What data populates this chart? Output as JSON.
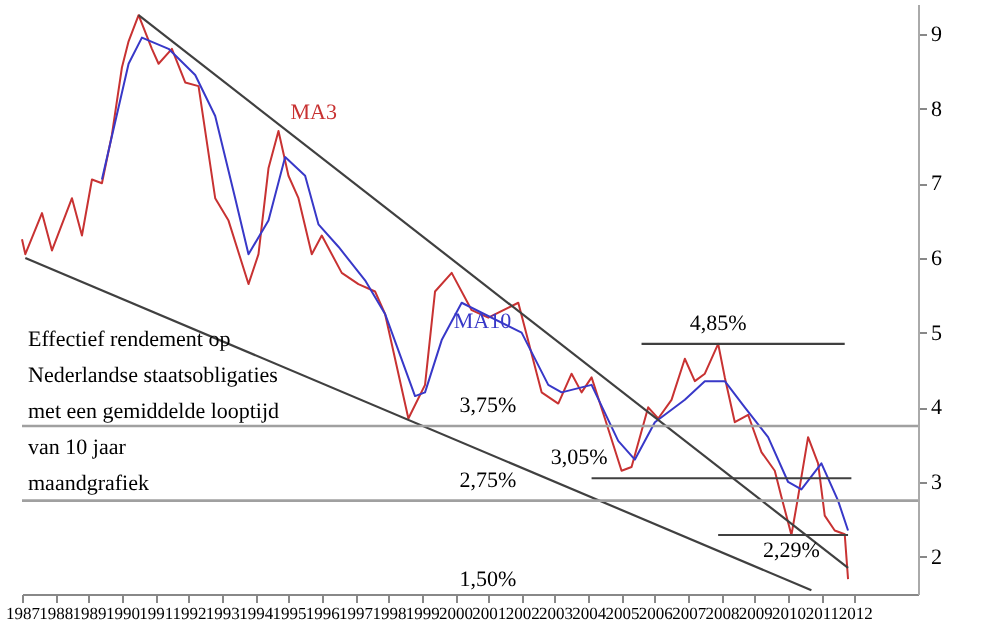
{
  "chart_data": {
    "type": "line",
    "title": "Effectief rendement op Nederlandse staatsobligaties met een gemiddelde looptijd van 10 jaar",
    "subtitle": "maandgrafiek",
    "xlim": [
      1987,
      2013.9
    ],
    "xticks": [
      1987,
      1988,
      1989,
      1990,
      1991,
      1992,
      1993,
      1994,
      1995,
      1996,
      1997,
      1998,
      1999,
      2000,
      2001,
      2002,
      2003,
      2004,
      2005,
      2006,
      2007,
      2008,
      2009,
      2010,
      2011,
      2012
    ],
    "ylim": [
      1.5,
      9.4
    ],
    "yticks": [
      2,
      3,
      4,
      5,
      6,
      7,
      8,
      9
    ],
    "grid": false,
    "series": [
      {
        "name": "MA3",
        "color": "#c83232",
        "x": [
          1987.0,
          1987.1,
          1987.6,
          1987.9,
          1988.5,
          1988.8,
          1989.1,
          1989.4,
          1989.7,
          1990.0,
          1990.2,
          1990.5,
          1990.9,
          1991.1,
          1991.5,
          1991.9,
          1992.3,
          1992.8,
          1993.2,
          1993.8,
          1994.1,
          1994.4,
          1994.7,
          1995.0,
          1995.3,
          1995.7,
          1996.0,
          1996.6,
          1997.1,
          1997.6,
          1997.9,
          1998.6,
          1999.1,
          1999.4,
          1999.9,
          2000.5,
          2001.0,
          2001.9,
          2002.6,
          2003.1,
          2003.5,
          2003.8,
          2004.1,
          2004.5,
          2005.0,
          2005.3,
          2005.8,
          2006.1,
          2006.5,
          2006.9,
          2007.2,
          2007.5,
          2007.9,
          2008.1,
          2008.4,
          2008.8,
          2009.2,
          2009.6,
          2009.8,
          2010.1,
          2010.3,
          2010.6,
          2010.9,
          2011.1,
          2011.4,
          2011.7,
          2011.8
        ],
        "values": [
          6.25,
          6.05,
          6.6,
          6.1,
          6.8,
          6.3,
          7.05,
          7.0,
          7.65,
          8.55,
          8.9,
          9.25,
          8.8,
          8.6,
          8.8,
          8.35,
          8.3,
          6.8,
          6.5,
          5.65,
          6.05,
          7.2,
          7.7,
          7.1,
          6.8,
          6.05,
          6.3,
          5.8,
          5.65,
          5.55,
          5.25,
          3.85,
          4.3,
          5.55,
          5.8,
          5.3,
          5.2,
          5.4,
          4.2,
          4.05,
          4.45,
          4.2,
          4.4,
          3.85,
          3.15,
          3.2,
          4.0,
          3.85,
          4.1,
          4.65,
          4.35,
          4.45,
          4.85,
          4.4,
          3.8,
          3.9,
          3.4,
          3.15,
          2.8,
          2.29,
          2.8,
          3.6,
          3.25,
          2.55,
          2.35,
          2.3,
          1.7
        ]
      },
      {
        "name": "MA10",
        "color": "#3838c8",
        "x": [
          1989.4,
          1990.2,
          1990.6,
          1991.4,
          1992.2,
          1992.8,
          1993.4,
          1993.8,
          1994.4,
          1994.9,
          1995.5,
          1995.9,
          1996.5,
          1997.3,
          1997.9,
          1998.8,
          1999.1,
          1999.6,
          2000.2,
          2002.0,
          2002.8,
          2003.2,
          2004.1,
          2004.9,
          2005.4,
          2006.0,
          2006.9,
          2007.5,
          2008.1,
          2008.7,
          2009.4,
          2010.0,
          2010.4,
          2011.0,
          2011.5,
          2011.8
        ],
        "values": [
          7.05,
          8.6,
          8.95,
          8.8,
          8.45,
          7.9,
          6.8,
          6.05,
          6.5,
          7.35,
          7.1,
          6.45,
          6.15,
          5.7,
          5.25,
          4.15,
          4.2,
          4.9,
          5.4,
          5.0,
          4.3,
          4.2,
          4.3,
          3.55,
          3.3,
          3.8,
          4.1,
          4.35,
          4.35,
          4.0,
          3.6,
          3.0,
          2.9,
          3.25,
          2.75,
          2.35
        ]
      },
      {
        "color": "#404040",
        "x": [
          1990.5,
          2011.8
        ],
        "values": [
          9.25,
          1.85
        ]
      },
      {
        "color": "#404040",
        "x": [
          1987.1,
          2010.7
        ],
        "values": [
          6.0,
          1.55
        ]
      },
      {
        "color": "#404040",
        "x": [
          2005.6,
          2011.7
        ],
        "values": [
          4.85,
          4.85
        ]
      },
      {
        "color": "#404040",
        "x": [
          2004.1,
          2011.9
        ],
        "values": [
          3.05,
          3.05
        ]
      },
      {
        "color": "#404040",
        "x": [
          2007.9,
          2011.8
        ],
        "values": [
          2.29,
          2.29
        ]
      }
    ],
    "ref_lines": [
      {
        "axis": "y",
        "value": 3.75,
        "label": "3,75%",
        "color": "#a0a0a0"
      },
      {
        "axis": "y",
        "value": 2.75,
        "label": "2,75%",
        "color": "#a0a0a0"
      }
    ],
    "annotations": [
      {
        "text": "4,85%",
        "x": 2007.9,
        "y": 4.85
      },
      {
        "text": "3,05%",
        "x": 2004.1,
        "y": 3.05
      },
      {
        "text": "2,29%",
        "x": 2010.1,
        "y": 2.29
      },
      "1,50%"
    ]
  }
}
